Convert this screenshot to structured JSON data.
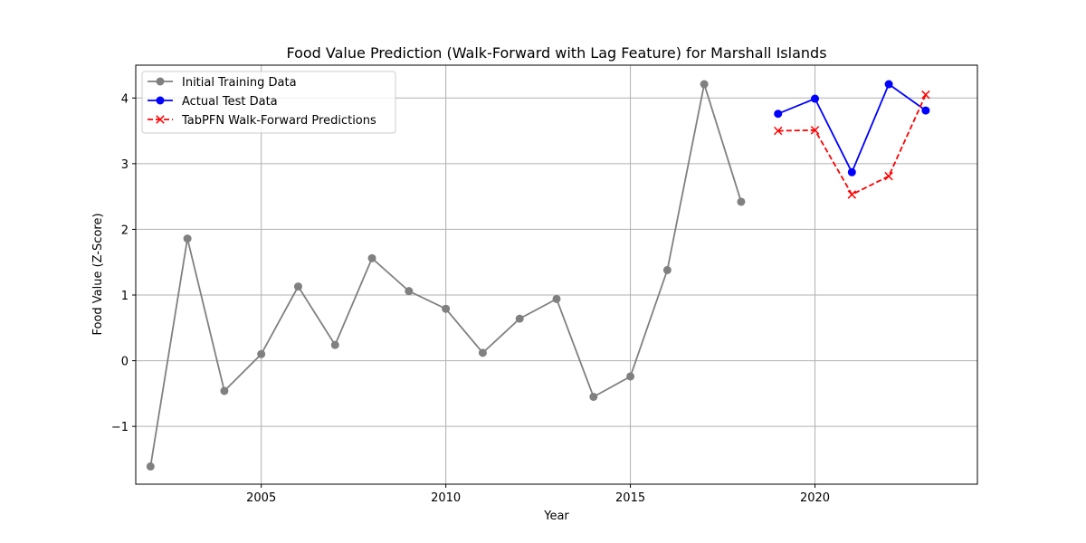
{
  "chart_data": {
    "type": "line",
    "title": "Food Value Prediction (Walk-Forward with Lag Feature) for Marshall Islands",
    "xlabel": "Year",
    "ylabel": "Food Value (Z-Score)",
    "xlim": [
      2001.6,
      2024.4
    ],
    "ylim": [
      -1.88,
      4.5
    ],
    "xticks": [
      2005,
      2010,
      2015,
      2020
    ],
    "yticks": [
      -1,
      0,
      1,
      2,
      3,
      4
    ],
    "ytick_labels": [
      "−1",
      "0",
      "1",
      "2",
      "3",
      "4"
    ],
    "grid": true,
    "legend_position": "upper-left",
    "series": [
      {
        "name": "Initial Training Data",
        "color": "#808080",
        "line_style": "solid",
        "marker": "circle",
        "x": [
          2002,
          2003,
          2004,
          2005,
          2006,
          2007,
          2008,
          2009,
          2010,
          2011,
          2012,
          2013,
          2014,
          2015,
          2016,
          2017,
          2018
        ],
        "y": [
          -1.61,
          1.86,
          -0.46,
          0.1,
          1.13,
          0.24,
          1.56,
          1.06,
          0.79,
          0.12,
          0.64,
          0.94,
          -0.55,
          -0.24,
          1.38,
          4.21,
          2.42
        ]
      },
      {
        "name": "Actual Test Data",
        "color": "#0000ff",
        "line_style": "solid",
        "marker": "circle",
        "x": [
          2019,
          2020,
          2021,
          2022,
          2023
        ],
        "y": [
          3.76,
          3.99,
          2.87,
          4.21,
          3.81
        ]
      },
      {
        "name": "TabPFN Walk-Forward Predictions",
        "color": "#ff0000",
        "line_style": "dashed",
        "marker": "x",
        "x": [
          2019,
          2020,
          2021,
          2022,
          2023
        ],
        "y": [
          3.5,
          3.51,
          2.53,
          2.81,
          4.05
        ]
      }
    ]
  }
}
